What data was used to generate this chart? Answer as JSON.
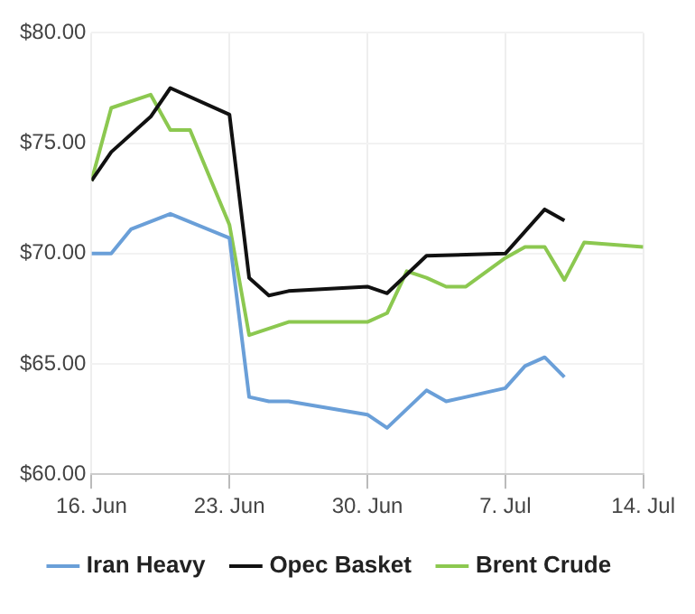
{
  "chart_data": {
    "type": "line",
    "xlim": [
      "--06-16",
      "--07-14"
    ],
    "xticks": [
      {
        "value": "--06-16",
        "label": "16. Jun"
      },
      {
        "value": "--06-23",
        "label": "23. Jun"
      },
      {
        "value": "--06-30",
        "label": "30. Jun"
      },
      {
        "value": "--07-07",
        "label": "7. Jul"
      },
      {
        "value": "--07-14",
        "label": "14. Jul"
      }
    ],
    "ylim": [
      60,
      80
    ],
    "yticks": [
      {
        "value": 60,
        "label": "$60.00"
      },
      {
        "value": 65,
        "label": "$65.00"
      },
      {
        "value": 70,
        "label": "$70.00"
      },
      {
        "value": 75,
        "label": "$75.00"
      },
      {
        "value": 80,
        "label": "$80.00"
      }
    ],
    "grid": true,
    "legend": "bottom",
    "marker": "none",
    "line_style": "solid",
    "series": [
      {
        "name": "Iran Heavy",
        "color": "#6a9fd8",
        "x": [
          "--06-16",
          "--06-17",
          "--06-18",
          "--06-20",
          "--06-23",
          "--06-24",
          "--06-25",
          "--06-26",
          "--06-30",
          "--07-01",
          "--07-03",
          "--07-04",
          "--07-07",
          "--07-08",
          "--07-09",
          "--07-10"
        ],
        "values": [
          70.0,
          70.0,
          71.1,
          71.8,
          70.7,
          63.5,
          63.3,
          63.3,
          62.7,
          62.1,
          63.8,
          63.3,
          63.9,
          64.9,
          65.3,
          64.4
        ]
      },
      {
        "name": "Opec Basket",
        "color": "#111111",
        "x": [
          "--06-16",
          "--06-17",
          "--06-19",
          "--06-20",
          "--06-23",
          "--06-24",
          "--06-25",
          "--06-26",
          "--06-30",
          "--07-01",
          "--07-03",
          "--07-07",
          "--07-09",
          "--07-10"
        ],
        "values": [
          73.3,
          74.6,
          76.2,
          77.5,
          76.3,
          68.9,
          68.1,
          68.3,
          68.5,
          68.2,
          69.9,
          70.0,
          72.0,
          71.5
        ]
      },
      {
        "name": "Brent Crude",
        "color": "#8cc850",
        "x": [
          "--06-16",
          "--06-17",
          "--06-19",
          "--06-20",
          "--06-21",
          "--06-23",
          "--06-24",
          "--06-25",
          "--06-26",
          "--06-30",
          "--07-01",
          "--07-02",
          "--07-03",
          "--07-04",
          "--07-05",
          "--07-07",
          "--07-08",
          "--07-09",
          "--07-10",
          "--07-11",
          "--07-14"
        ],
        "values": [
          73.3,
          76.6,
          77.2,
          75.6,
          75.6,
          71.3,
          66.3,
          66.6,
          66.9,
          66.9,
          67.3,
          69.2,
          68.9,
          68.5,
          68.5,
          69.8,
          70.3,
          70.3,
          68.8,
          70.5,
          70.3
        ]
      }
    ]
  }
}
